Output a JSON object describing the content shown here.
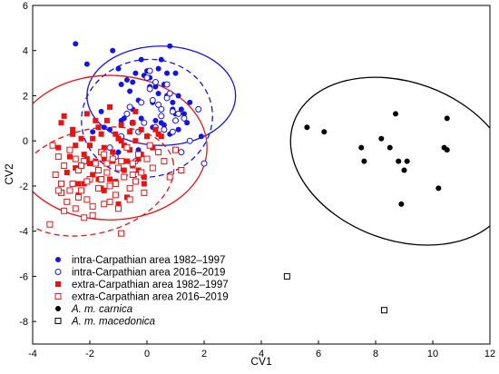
{
  "chart_data": {
    "type": "scatter",
    "xlabel": "CV1",
    "ylabel": "CV2",
    "xlim": [
      -4,
      12
    ],
    "ylim": [
      -9,
      6
    ],
    "xticks": [
      -4,
      -2,
      0,
      2,
      4,
      6,
      8,
      10,
      12
    ],
    "yticks": [
      -8,
      -6,
      -4,
      -2,
      0,
      2,
      4,
      6
    ],
    "grid": false,
    "legend_position": "bottom-left",
    "colors": {
      "blue": "#1414e6",
      "red": "#e61414",
      "black": "#000000"
    },
    "series": [
      {
        "name": "intra-Carpathian area 1982–1997",
        "marker": "filled-circle",
        "color": "#1414e6",
        "x": [
          -2.5,
          -2.1,
          -1.6,
          -1.2,
          -1.0,
          -0.9,
          -0.7,
          -0.6,
          -0.5,
          -0.4,
          -0.3,
          -0.2,
          -0.1,
          0.0,
          0.1,
          0.2,
          0.3,
          0.4,
          0.5,
          0.6,
          0.7,
          0.8,
          0.9,
          1.0,
          1.1,
          1.2,
          1.3,
          1.4,
          1.5,
          -0.8,
          -0.2,
          0.3,
          0.6,
          1.0,
          0.4,
          0.1,
          -0.5,
          -1.3,
          -0.9,
          0.8,
          1.1,
          0.2,
          -0.3,
          0.9,
          -1.5,
          0.5,
          1.9,
          -1.9,
          -1.0,
          0.7
        ],
        "y": [
          4.3,
          3.4,
          1.3,
          4.0,
          3.2,
          2.5,
          2.7,
          2.2,
          2.6,
          3.0,
          1.8,
          3.6,
          2.9,
          3.1,
          2.8,
          1.7,
          2.4,
          2.1,
          3.6,
          2.5,
          2.0,
          4.2,
          1.7,
          3.0,
          2.0,
          1.4,
          1.2,
          0.8,
          1.7,
          1.0,
          1.0,
          0.9,
          0.7,
          1.2,
          3.2,
          2.4,
          1.4,
          0.5,
          0.9,
          0.3,
          0.5,
          0.6,
          -0.4,
          1.4,
          0.6,
          0.8,
          0.2,
          0.4,
          -0.5,
          3.0
        ]
      },
      {
        "name": "intra-Carpathian area 2016–2019",
        "marker": "open-circle",
        "color": "#1414e6",
        "x": [
          -0.9,
          -0.6,
          -0.4,
          -0.1,
          0.1,
          0.3,
          0.5,
          0.7,
          0.9,
          1.1,
          1.3,
          0.0,
          -0.3,
          0.4,
          0.8,
          1.2,
          -0.2,
          0.2,
          0.6,
          -0.7,
          -1.1,
          0.1,
          0.5,
          1.0,
          1.5,
          2.0,
          -0.5,
          0.3,
          0.9,
          -1.3,
          1.8,
          0.7
        ],
        "y": [
          0.2,
          1.5,
          -0.9,
          0.8,
          2.3,
          0.6,
          1.1,
          1.9,
          0.4,
          1.2,
          1.0,
          2.8,
          0.4,
          1.6,
          2.1,
          -0.5,
          1.7,
          1.8,
          0.5,
          1.2,
          -0.7,
          3.1,
          1.4,
          0.9,
          0.0,
          -1.0,
          0.8,
          2.6,
          1.3,
          -0.3,
          1.4,
          2.5
        ]
      },
      {
        "name": "extra-Carpathian area 1982–1997",
        "marker": "filled-square",
        "color": "#e61414",
        "x": [
          -3.0,
          -2.8,
          -2.6,
          -2.5,
          -2.4,
          -2.2,
          -2.1,
          -2.0,
          -1.9,
          -1.8,
          -1.7,
          -1.6,
          -1.5,
          -1.4,
          -1.3,
          -1.2,
          -1.1,
          -1.0,
          -0.9,
          -0.8,
          -0.7,
          -0.6,
          -0.5,
          -0.4,
          -0.3,
          -0.2,
          -0.1,
          0.0,
          0.2,
          0.4,
          -2.9,
          -2.3,
          -1.9,
          -1.5,
          -1.1,
          -0.7,
          -0.3,
          0.1,
          -2.7,
          -2.2,
          -1.8,
          -1.4,
          -1.0,
          -0.6,
          -0.2,
          -2.4,
          -2.0,
          -1.6,
          -1.2,
          -0.8,
          -0.4,
          0.3,
          -3.1,
          -1.3,
          -0.9,
          -0.5,
          -1.7,
          -2.5,
          -2.1,
          0.5,
          -0.1,
          -1.0,
          -1.5,
          -2.6
        ],
        "y": [
          0.8,
          -1.4,
          0.5,
          -0.2,
          -1.9,
          -0.6,
          1.2,
          -1.0,
          0.1,
          -0.9,
          0.6,
          -2.1,
          -0.3,
          0.9,
          -1.7,
          -0.5,
          0.3,
          -1.2,
          0.7,
          -0.2,
          -2.5,
          0.4,
          -1.1,
          0.0,
          -0.8,
          0.5,
          -1.6,
          0.2,
          -0.3,
          0.3,
          1.1,
          0.1,
          -1.5,
          -0.8,
          -1.8,
          -0.9,
          -1.3,
          -0.2,
          -0.7,
          -1.9,
          0.9,
          -1.4,
          0.1,
          -0.4,
          -0.6,
          -2.4,
          -0.2,
          0.3,
          -0.9,
          -1.3,
          1.3,
          0.5,
          -0.3,
          1.5,
          0.0,
          0.8,
          -1.7,
          -1.2,
          -0.8,
          0.2,
          -1.9,
          -2.8,
          -2.2,
          0.3
        ]
      },
      {
        "name": "extra-Carpathian area 2016–2019",
        "marker": "open-square",
        "color": "#e61414",
        "x": [
          -3.4,
          -3.2,
          -3.1,
          -3.0,
          -2.9,
          -2.8,
          -2.7,
          -2.6,
          -2.5,
          -2.4,
          -2.3,
          -2.2,
          -2.1,
          -2.0,
          -1.9,
          -1.8,
          -1.7,
          -1.6,
          -1.5,
          -1.4,
          -1.3,
          -1.2,
          -1.1,
          -1.0,
          -0.9,
          -0.8,
          -0.7,
          -0.6,
          -0.5,
          -0.4,
          -0.3,
          -0.2,
          -0.1,
          0.0,
          0.2,
          0.4,
          0.6,
          0.8,
          1.0,
          1.2,
          -3.3,
          -2.9,
          -2.5,
          -2.1,
          -1.7,
          -1.3,
          -0.9,
          -0.5,
          -2.7,
          -2.3,
          -1.9,
          -1.5,
          -1.1,
          -3.0,
          -2.4,
          -1.4,
          -0.6,
          0.1,
          -3.1,
          -2.2,
          -1.6,
          -1.0
        ],
        "y": [
          -3.7,
          -1.5,
          -0.7,
          -2.3,
          -1.1,
          -2.7,
          -0.4,
          -1.9,
          -3.0,
          -1.3,
          -2.2,
          -0.9,
          -2.6,
          -1.7,
          -3.3,
          -1.0,
          -2.1,
          -0.5,
          -2.8,
          -1.4,
          -2.0,
          -0.8,
          -2.4,
          -1.2,
          -4.1,
          -1.6,
          -0.3,
          -2.1,
          -1.0,
          -1.8,
          -0.6,
          -1.4,
          -2.3,
          -0.8,
          -1.2,
          -0.5,
          -0.9,
          -1.6,
          -0.4,
          -1.3,
          -0.2,
          -3.1,
          -0.8,
          -1.8,
          -1.3,
          -2.7,
          -0.9,
          -1.5,
          -2.2,
          -1.1,
          -2.9,
          -0.6,
          -1.9,
          -1.9,
          -2.5,
          -1.0,
          -2.6,
          -0.2,
          -2.2,
          -3.4,
          -1.7,
          -3.0
        ]
      },
      {
        "name": "A. m. carnica",
        "marker": "filled-circle",
        "color": "#000000",
        "x": [
          5.6,
          6.2,
          7.5,
          7.6,
          8.2,
          8.5,
          8.7,
          8.8,
          8.9,
          9.0,
          9.1,
          10.2,
          10.4,
          10.5,
          10.5
        ],
        "y": [
          0.6,
          0.4,
          -0.3,
          -0.9,
          0.1,
          -0.3,
          1.2,
          -0.9,
          -2.8,
          -1.3,
          -0.9,
          -2.1,
          -0.3,
          1.0,
          -0.4
        ]
      },
      {
        "name": "A. m. macedonica",
        "marker": "open-square",
        "color": "#000000",
        "x": [
          4.9,
          8.3
        ],
        "y": [
          -6.0,
          -7.5
        ]
      }
    ],
    "ellipses": [
      {
        "cx": 0.5,
        "cy": 2.0,
        "rx": 2.6,
        "ry": 2.2,
        "angle": 0,
        "color": "#1414e6",
        "dash": false
      },
      {
        "cx": 0.0,
        "cy": 1.0,
        "rx": 2.3,
        "ry": 2.6,
        "angle": 10,
        "color": "#1414e6",
        "dash": true
      },
      {
        "cx": -1.3,
        "cy": -0.3,
        "rx": 3.4,
        "ry": 3.2,
        "angle": 0,
        "color": "#e61414",
        "dash": false
      },
      {
        "cx": -1.9,
        "cy": -1.8,
        "rx": 2.9,
        "ry": 2.3,
        "angle": 15,
        "color": "#e61414",
        "dash": true
      },
      {
        "cx": 8.9,
        "cy": -0.9,
        "rx": 4.0,
        "ry": 3.5,
        "angle": -20,
        "color": "#000000",
        "dash": false
      }
    ]
  }
}
